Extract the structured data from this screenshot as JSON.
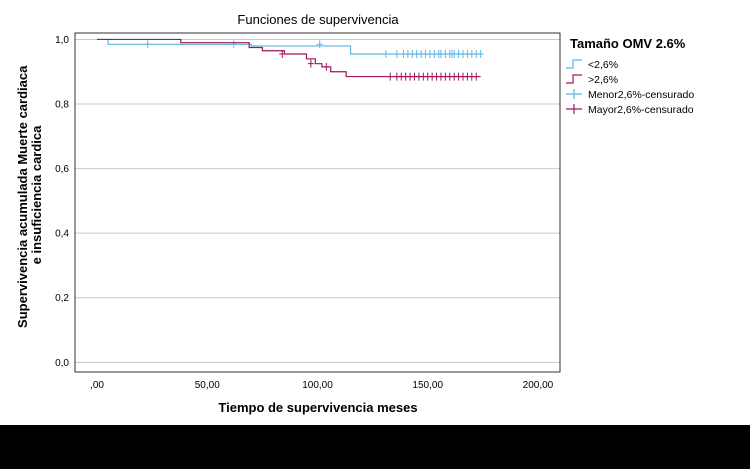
{
  "chart_data": {
    "type": "line",
    "step": true,
    "title": "Funciones de supervivencia",
    "xlabel": "Tiempo de supervivencia meses",
    "ylabel": "Supervivencia acumulada Muerte cardiaca e insuficiencia cardica",
    "xlim": [
      -10,
      210
    ],
    "ylim": [
      -0.03,
      1.02
    ],
    "xticks": [
      0,
      50,
      100,
      150,
      200
    ],
    "xtick_labels": [
      ",00",
      "50,00",
      "100,00",
      "150,00",
      "200,00"
    ],
    "yticks": [
      0,
      0.2,
      0.4,
      0.6,
      0.8,
      1.0
    ],
    "ytick_labels": [
      "0,0",
      "0,2",
      "0,4",
      "0,6",
      "0,8",
      "1,0"
    ],
    "grid": "horizontal",
    "legend": {
      "title": "Tamaño OMV 2.6%",
      "placement": "right",
      "entries": [
        "<2,6%",
        ">2,6%",
        "Menor2,6%-censurado",
        "Mayor2,6%-censurado"
      ]
    },
    "series": [
      {
        "name": "<2,6%",
        "color": "#5bb8e8",
        "x": [
          0,
          5,
          70,
          115,
          175
        ],
        "y": [
          1.0,
          0.985,
          0.98,
          0.955,
          0.955
        ],
        "censored": {
          "x": [
            23,
            62,
            101,
            131,
            136,
            139,
            141,
            143,
            145,
            147,
            149,
            151,
            153,
            155,
            156,
            158,
            160,
            161,
            162,
            164,
            166,
            168,
            170,
            172,
            174
          ],
          "y": [
            0.985,
            0.985,
            0.985,
            0.955,
            0.955,
            0.955,
            0.955,
            0.955,
            0.955,
            0.955,
            0.955,
            0.955,
            0.955,
            0.955,
            0.955,
            0.955,
            0.955,
            0.955,
            0.955,
            0.955,
            0.955,
            0.955,
            0.955,
            0.955,
            0.955
          ]
        }
      },
      {
        "name": ">2,6%",
        "color": "#a0185a",
        "x": [
          0,
          38,
          69,
          75,
          85,
          95,
          99,
          102,
          106,
          113,
          174
        ],
        "y": [
          1.0,
          0.99,
          0.975,
          0.965,
          0.955,
          0.94,
          0.925,
          0.915,
          0.9,
          0.885,
          0.885
        ],
        "censored": {
          "x": [
            84,
            97,
            104,
            133,
            136,
            138,
            140,
            142,
            144,
            146,
            148,
            150,
            152,
            154,
            156,
            158,
            160,
            162,
            164,
            166,
            168,
            170,
            172
          ],
          "y": [
            0.955,
            0.925,
            0.915,
            0.885,
            0.885,
            0.885,
            0.885,
            0.885,
            0.885,
            0.885,
            0.885,
            0.885,
            0.885,
            0.885,
            0.885,
            0.885,
            0.885,
            0.885,
            0.885,
            0.885,
            0.885,
            0.885,
            0.885
          ]
        }
      }
    ]
  }
}
